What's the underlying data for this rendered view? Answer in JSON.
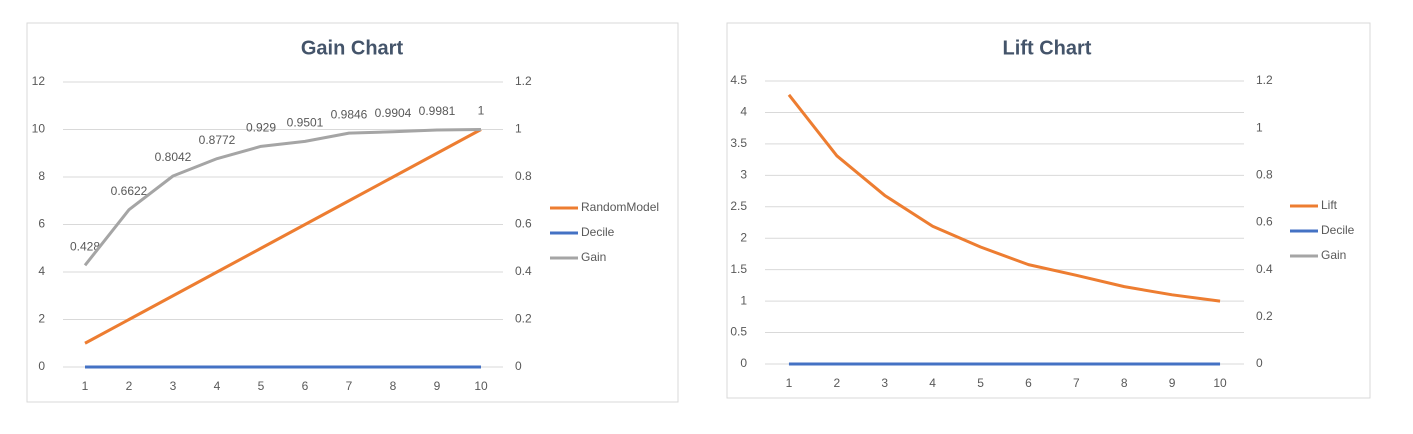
{
  "chart_data": [
    {
      "type": "line",
      "title": "Gain Chart",
      "categories": [
        "1",
        "2",
        "3",
        "4",
        "5",
        "6",
        "7",
        "8",
        "9",
        "10"
      ],
      "ylim": [
        0,
        12
      ],
      "yticks": [
        0,
        2,
        4,
        6,
        8,
        10,
        12
      ],
      "y2lim": [
        0,
        1.2
      ],
      "y2ticks": [
        0,
        0.2,
        0.4,
        0.6,
        0.8,
        1,
        1.2
      ],
      "grid": true,
      "legend": "right",
      "series": [
        {
          "name": "RandomModel",
          "color": "#ed7d31",
          "values": [
            1,
            2,
            3,
            4,
            5,
            6,
            7,
            8,
            9,
            10
          ]
        },
        {
          "name": "Decile",
          "color": "#4472c4",
          "values": [
            0,
            0,
            0,
            0,
            0,
            0,
            0,
            0,
            0,
            0
          ]
        },
        {
          "name": "Gain",
          "color": "#a5a5a5",
          "axis": "y2",
          "data_labels": true,
          "values": [
            0.428,
            0.6622,
            0.8042,
            0.8772,
            0.929,
            0.9501,
            0.9846,
            0.9904,
            0.9981,
            1
          ]
        }
      ]
    },
    {
      "type": "line",
      "title": "Lift Chart",
      "categories": [
        "1",
        "2",
        "3",
        "4",
        "5",
        "6",
        "7",
        "8",
        "9",
        "10"
      ],
      "ylim": [
        0,
        4.5
      ],
      "yticks": [
        0,
        0.5,
        1,
        1.5,
        2,
        2.5,
        3,
        3.5,
        4,
        4.5
      ],
      "y2lim": [
        0,
        1.2
      ],
      "y2ticks": [
        0,
        0.2,
        0.4,
        0.6,
        0.8,
        1,
        1.2
      ],
      "grid": true,
      "legend": "right",
      "series": [
        {
          "name": "Lift",
          "color": "#ed7d31",
          "values": [
            4.28,
            3.31,
            2.68,
            2.19,
            1.86,
            1.58,
            1.41,
            1.23,
            1.1,
            1
          ]
        },
        {
          "name": "Decile",
          "color": "#4472c4",
          "axis": "y2",
          "values": [
            0,
            0,
            0,
            0,
            0,
            0,
            0,
            0,
            0,
            0
          ]
        },
        {
          "name": "Gain",
          "color": "#a5a5a5",
          "axis": "y2",
          "values": [
            null,
            null,
            null,
            null,
            null,
            null,
            null,
            null,
            null,
            null
          ]
        }
      ]
    }
  ]
}
